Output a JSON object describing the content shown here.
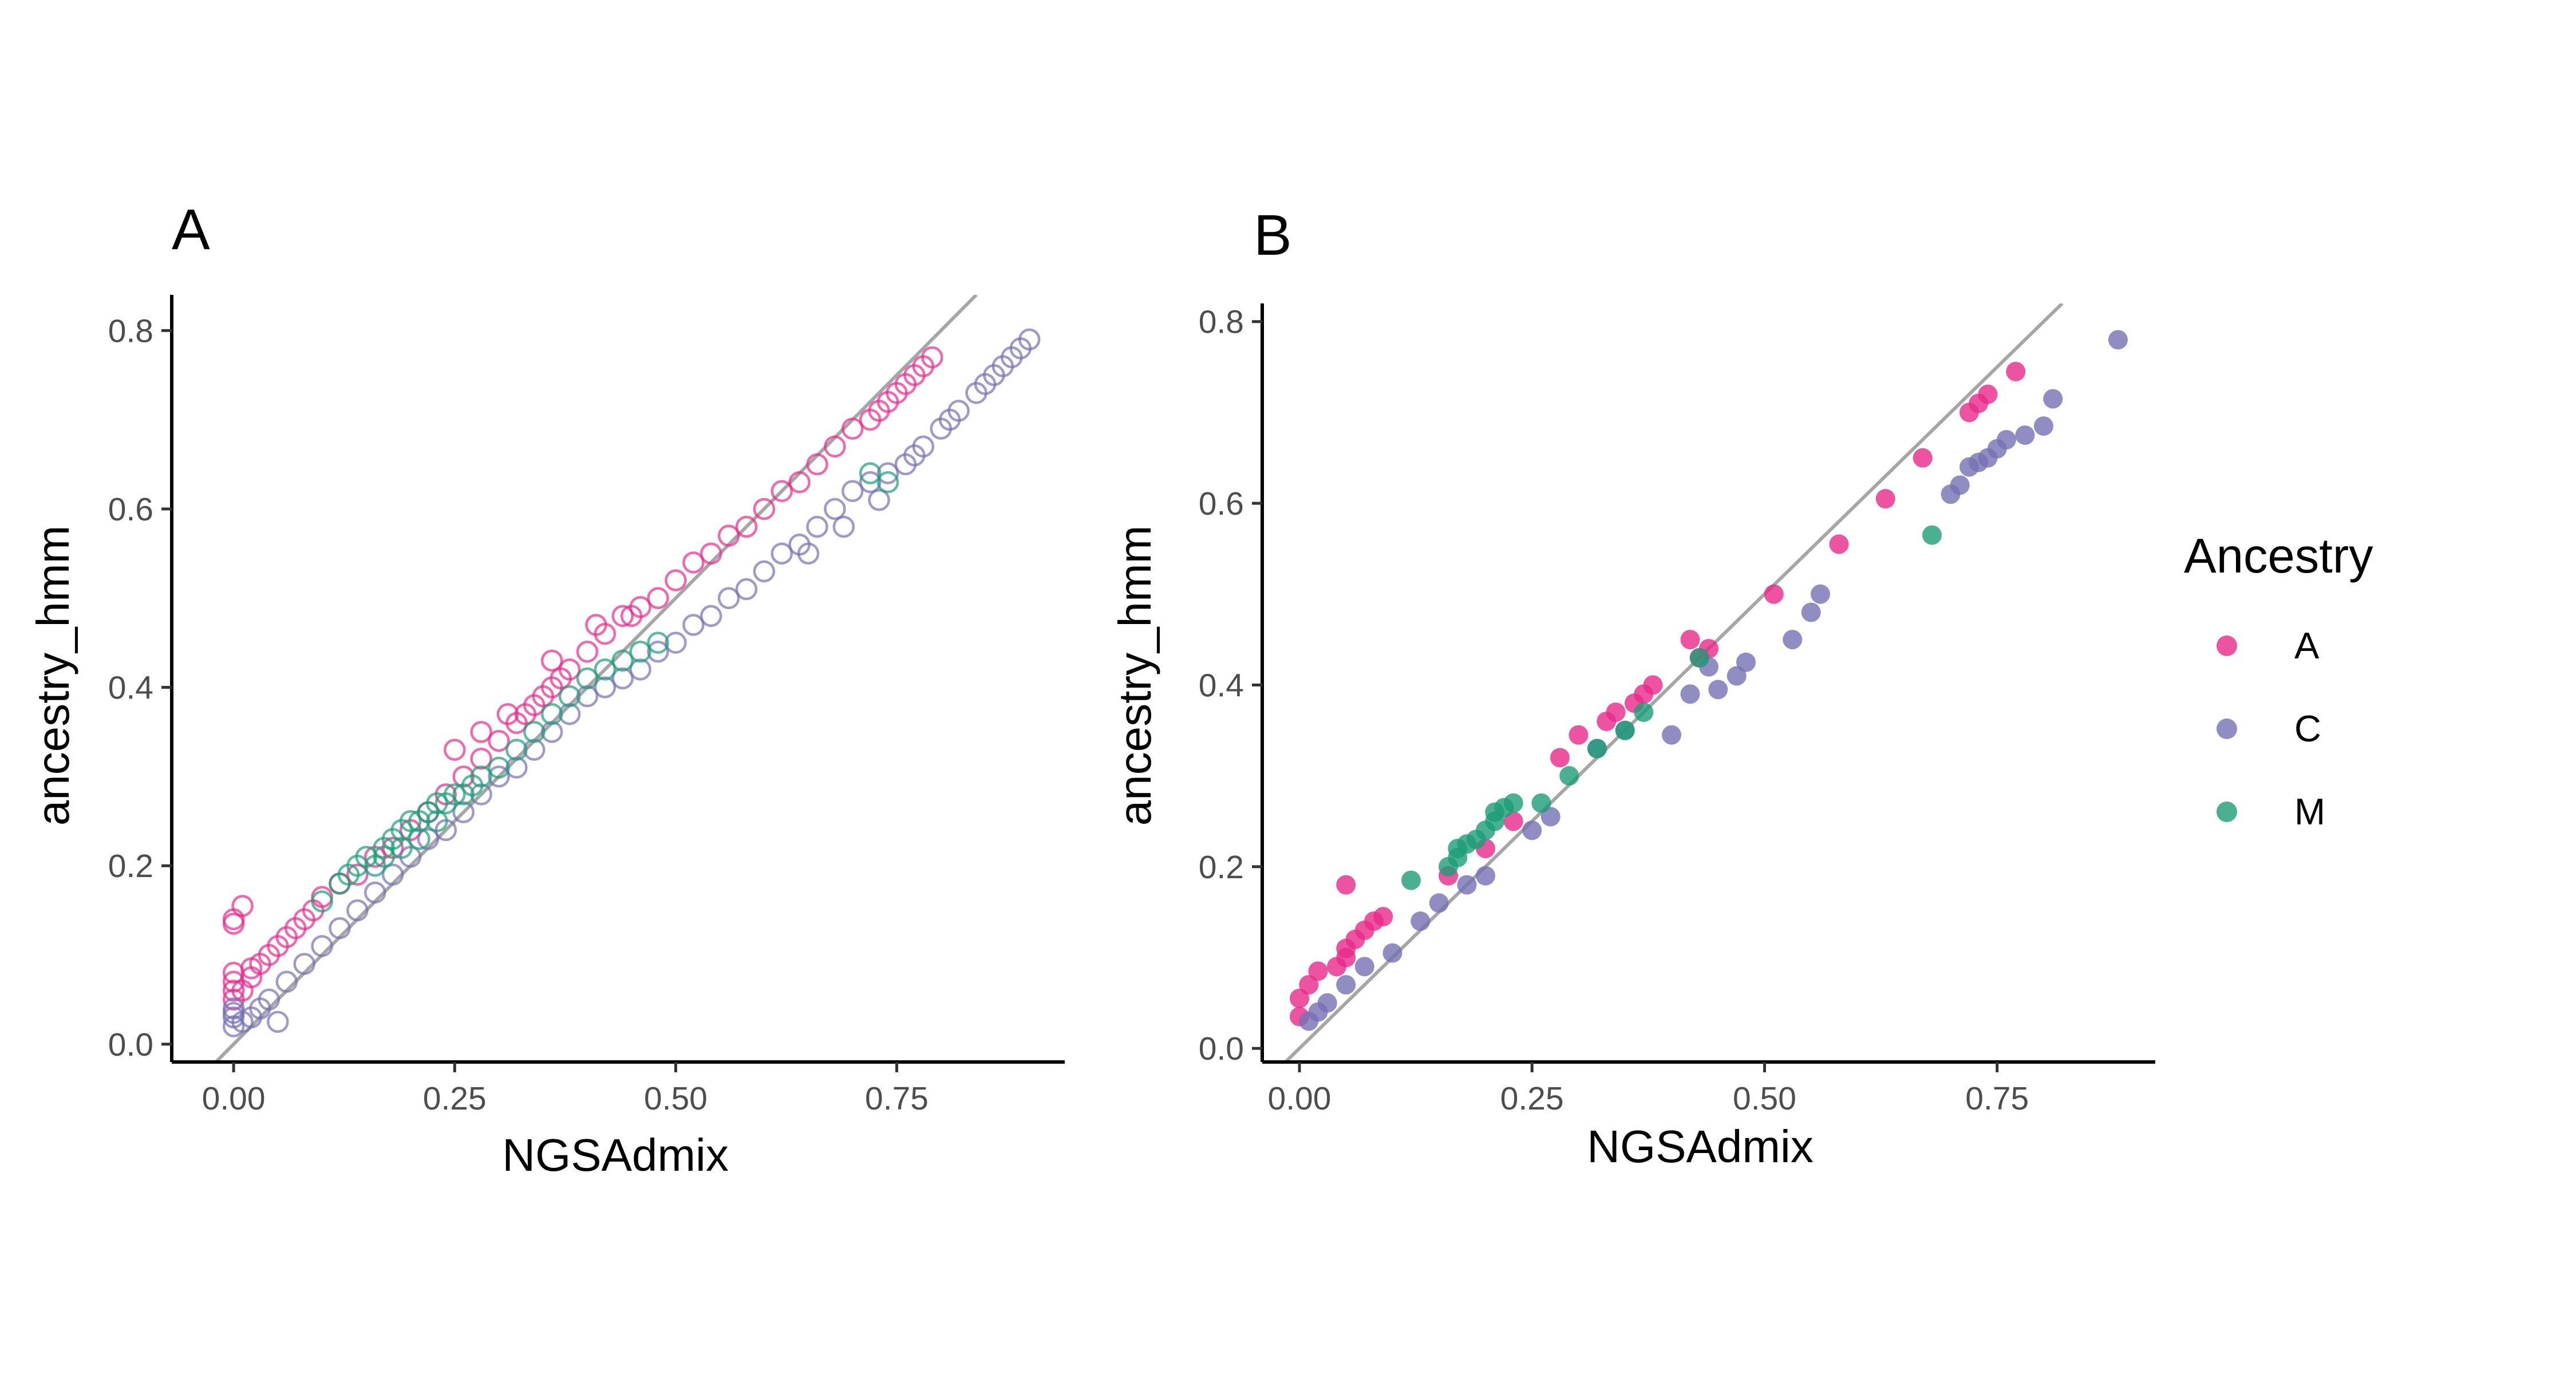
{
  "chart_data": [
    {
      "type": "scatter",
      "panel_label": "A",
      "xlabel": "NGSAdmix",
      "ylabel": "ancestry_hmm",
      "xlim": [
        -0.07,
        0.94
      ],
      "ylim": [
        -0.02,
        0.84
      ],
      "x_ticks": [
        0,
        0.25,
        0.5,
        0.75
      ],
      "x_tick_labels": [
        "0.00",
        "0.25",
        "0.50",
        "0.75"
      ],
      "y_ticks": [
        0,
        0.2,
        0.4,
        0.6,
        0.8
      ],
      "y_tick_labels": [
        "0.0",
        "0.2",
        "0.4",
        "0.6",
        "0.8"
      ],
      "marker": "open-circle",
      "reference_line": {
        "slope": 1,
        "intercept": 0
      },
      "grid": false,
      "series": [
        {
          "name": "A",
          "color": "#e7298a",
          "points": [
            [
              0.0,
              0.05
            ],
            [
              0.0,
              0.06
            ],
            [
              0.0,
              0.07
            ],
            [
              0.0,
              0.08
            ],
            [
              0.0,
              0.14
            ],
            [
              0.0,
              0.135
            ],
            [
              0.01,
              0.155
            ],
            [
              0.01,
              0.06
            ],
            [
              0.02,
              0.075
            ],
            [
              0.02,
              0.085
            ],
            [
              0.03,
              0.09
            ],
            [
              0.04,
              0.1
            ],
            [
              0.05,
              0.11
            ],
            [
              0.06,
              0.12
            ],
            [
              0.07,
              0.13
            ],
            [
              0.08,
              0.14
            ],
            [
              0.09,
              0.15
            ],
            [
              0.1,
              0.165
            ],
            [
              0.12,
              0.18
            ],
            [
              0.14,
              0.19
            ],
            [
              0.16,
              0.21
            ],
            [
              0.18,
              0.22
            ],
            [
              0.2,
              0.24
            ],
            [
              0.22,
              0.26
            ],
            [
              0.24,
              0.28
            ],
            [
              0.26,
              0.3
            ],
            [
              0.28,
              0.32
            ],
            [
              0.3,
              0.34
            ],
            [
              0.32,
              0.36
            ],
            [
              0.33,
              0.37
            ],
            [
              0.34,
              0.38
            ],
            [
              0.35,
              0.39
            ],
            [
              0.36,
              0.4
            ],
            [
              0.37,
              0.41
            ],
            [
              0.38,
              0.42
            ],
            [
              0.4,
              0.44
            ],
            [
              0.42,
              0.46
            ],
            [
              0.44,
              0.48
            ],
            [
              0.46,
              0.49
            ],
            [
              0.48,
              0.5
            ],
            [
              0.5,
              0.52
            ],
            [
              0.52,
              0.54
            ],
            [
              0.54,
              0.55
            ],
            [
              0.56,
              0.57
            ],
            [
              0.58,
              0.58
            ],
            [
              0.6,
              0.6
            ],
            [
              0.62,
              0.62
            ],
            [
              0.64,
              0.63
            ],
            [
              0.66,
              0.65
            ],
            [
              0.68,
              0.67
            ],
            [
              0.7,
              0.69
            ],
            [
              0.72,
              0.7
            ],
            [
              0.73,
              0.71
            ],
            [
              0.74,
              0.72
            ],
            [
              0.75,
              0.73
            ],
            [
              0.76,
              0.74
            ],
            [
              0.77,
              0.75
            ],
            [
              0.78,
              0.76
            ],
            [
              0.79,
              0.77
            ],
            [
              0.25,
              0.33
            ],
            [
              0.28,
              0.35
            ],
            [
              0.31,
              0.37
            ],
            [
              0.36,
              0.43
            ],
            [
              0.41,
              0.47
            ],
            [
              0.45,
              0.48
            ]
          ]
        },
        {
          "name": "C",
          "color": "#7570b3",
          "points": [
            [
              0.0,
              0.02
            ],
            [
              0.0,
              0.03
            ],
            [
              0.0,
              0.035
            ],
            [
              0.0,
              0.04
            ],
            [
              0.01,
              0.025
            ],
            [
              0.02,
              0.03
            ],
            [
              0.03,
              0.04
            ],
            [
              0.04,
              0.05
            ],
            [
              0.05,
              0.025
            ],
            [
              0.06,
              0.07
            ],
            [
              0.08,
              0.09
            ],
            [
              0.1,
              0.11
            ],
            [
              0.12,
              0.13
            ],
            [
              0.14,
              0.15
            ],
            [
              0.16,
              0.17
            ],
            [
              0.18,
              0.19
            ],
            [
              0.2,
              0.21
            ],
            [
              0.22,
              0.23
            ],
            [
              0.24,
              0.24
            ],
            [
              0.26,
              0.26
            ],
            [
              0.28,
              0.28
            ],
            [
              0.3,
              0.3
            ],
            [
              0.32,
              0.31
            ],
            [
              0.34,
              0.33
            ],
            [
              0.36,
              0.35
            ],
            [
              0.38,
              0.37
            ],
            [
              0.4,
              0.39
            ],
            [
              0.42,
              0.4
            ],
            [
              0.44,
              0.41
            ],
            [
              0.46,
              0.42
            ],
            [
              0.48,
              0.44
            ],
            [
              0.5,
              0.45
            ],
            [
              0.52,
              0.47
            ],
            [
              0.54,
              0.48
            ],
            [
              0.56,
              0.5
            ],
            [
              0.58,
              0.51
            ],
            [
              0.6,
              0.53
            ],
            [
              0.62,
              0.55
            ],
            [
              0.64,
              0.56
            ],
            [
              0.66,
              0.58
            ],
            [
              0.68,
              0.6
            ],
            [
              0.7,
              0.62
            ],
            [
              0.72,
              0.63
            ],
            [
              0.74,
              0.64
            ],
            [
              0.76,
              0.65
            ],
            [
              0.78,
              0.67
            ],
            [
              0.8,
              0.69
            ],
            [
              0.82,
              0.71
            ],
            [
              0.84,
              0.73
            ],
            [
              0.86,
              0.75
            ],
            [
              0.88,
              0.77
            ],
            [
              0.89,
              0.78
            ],
            [
              0.9,
              0.79
            ],
            [
              0.87,
              0.76
            ],
            [
              0.85,
              0.74
            ],
            [
              0.81,
              0.7
            ],
            [
              0.77,
              0.66
            ],
            [
              0.73,
              0.61
            ],
            [
              0.69,
              0.58
            ],
            [
              0.65,
              0.55
            ]
          ]
        },
        {
          "name": "M",
          "color": "#1b9e77",
          "points": [
            [
              0.1,
              0.16
            ],
            [
              0.12,
              0.18
            ],
            [
              0.13,
              0.19
            ],
            [
              0.14,
              0.2
            ],
            [
              0.15,
              0.21
            ],
            [
              0.16,
              0.2
            ],
            [
              0.17,
              0.22
            ],
            [
              0.18,
              0.23
            ],
            [
              0.19,
              0.24
            ],
            [
              0.2,
              0.25
            ],
            [
              0.21,
              0.25
            ],
            [
              0.22,
              0.26
            ],
            [
              0.23,
              0.27
            ],
            [
              0.24,
              0.27
            ],
            [
              0.25,
              0.28
            ],
            [
              0.26,
              0.28
            ],
            [
              0.27,
              0.29
            ],
            [
              0.28,
              0.3
            ],
            [
              0.3,
              0.31
            ],
            [
              0.32,
              0.33
            ],
            [
              0.34,
              0.35
            ],
            [
              0.36,
              0.37
            ],
            [
              0.38,
              0.39
            ],
            [
              0.4,
              0.41
            ],
            [
              0.42,
              0.42
            ],
            [
              0.44,
              0.43
            ],
            [
              0.46,
              0.44
            ],
            [
              0.48,
              0.45
            ],
            [
              0.72,
              0.64
            ],
            [
              0.74,
              0.63
            ],
            [
              0.23,
              0.25
            ],
            [
              0.21,
              0.23
            ],
            [
              0.19,
              0.22
            ],
            [
              0.17,
              0.21
            ]
          ]
        }
      ]
    },
    {
      "type": "scatter",
      "panel_label": "B",
      "xlabel": "NGSAdmix",
      "ylabel": "ancestry_hmm",
      "xlim": [
        -0.04,
        0.92
      ],
      "ylim": [
        -0.015,
        0.82
      ],
      "x_ticks": [
        0,
        0.25,
        0.5,
        0.75
      ],
      "x_tick_labels": [
        "0.00",
        "0.25",
        "0.50",
        "0.75"
      ],
      "y_ticks": [
        0,
        0.2,
        0.4,
        0.6,
        0.8
      ],
      "y_tick_labels": [
        "0.0",
        "0.2",
        "0.4",
        "0.6",
        "0.8"
      ],
      "marker": "filled-circle",
      "reference_line": {
        "slope": 1,
        "intercept": 0
      },
      "grid": false,
      "series": [
        {
          "name": "A",
          "color": "#e7298a",
          "points": [
            [
              0.0,
              0.035
            ],
            [
              0.0,
              0.055
            ],
            [
              0.01,
              0.07
            ],
            [
              0.02,
              0.085
            ],
            [
              0.04,
              0.09
            ],
            [
              0.05,
              0.1
            ],
            [
              0.05,
              0.11
            ],
            [
              0.05,
              0.18
            ],
            [
              0.06,
              0.12
            ],
            [
              0.07,
              0.13
            ],
            [
              0.08,
              0.14
            ],
            [
              0.09,
              0.145
            ],
            [
              0.16,
              0.19
            ],
            [
              0.2,
              0.22
            ],
            [
              0.23,
              0.25
            ],
            [
              0.28,
              0.32
            ],
            [
              0.3,
              0.345
            ],
            [
              0.33,
              0.36
            ],
            [
              0.34,
              0.37
            ],
            [
              0.36,
              0.38
            ],
            [
              0.37,
              0.39
            ],
            [
              0.38,
              0.4
            ],
            [
              0.42,
              0.45
            ],
            [
              0.43,
              0.43
            ],
            [
              0.44,
              0.44
            ],
            [
              0.51,
              0.5
            ],
            [
              0.58,
              0.555
            ],
            [
              0.63,
              0.605
            ],
            [
              0.67,
              0.65
            ],
            [
              0.72,
              0.7
            ],
            [
              0.74,
              0.72
            ],
            [
              0.77,
              0.745
            ],
            [
              0.73,
              0.71
            ]
          ]
        },
        {
          "name": "C",
          "color": "#7570b3",
          "points": [
            [
              0.01,
              0.03
            ],
            [
              0.02,
              0.04
            ],
            [
              0.03,
              0.05
            ],
            [
              0.05,
              0.07
            ],
            [
              0.07,
              0.09
            ],
            [
              0.1,
              0.105
            ],
            [
              0.13,
              0.14
            ],
            [
              0.15,
              0.16
            ],
            [
              0.18,
              0.18
            ],
            [
              0.2,
              0.19
            ],
            [
              0.25,
              0.24
            ],
            [
              0.27,
              0.255
            ],
            [
              0.35,
              0.35
            ],
            [
              0.4,
              0.345
            ],
            [
              0.42,
              0.39
            ],
            [
              0.45,
              0.395
            ],
            [
              0.47,
              0.41
            ],
            [
              0.48,
              0.425
            ],
            [
              0.53,
              0.45
            ],
            [
              0.55,
              0.48
            ],
            [
              0.56,
              0.5
            ],
            [
              0.7,
              0.61
            ],
            [
              0.71,
              0.62
            ],
            [
              0.72,
              0.64
            ],
            [
              0.73,
              0.645
            ],
            [
              0.74,
              0.65
            ],
            [
              0.75,
              0.66
            ],
            [
              0.76,
              0.67
            ],
            [
              0.78,
              0.675
            ],
            [
              0.8,
              0.685
            ],
            [
              0.81,
              0.715
            ],
            [
              0.88,
              0.78
            ],
            [
              0.44,
              0.42
            ],
            [
              0.32,
              0.33
            ]
          ]
        },
        {
          "name": "M",
          "color": "#1b9e77",
          "points": [
            [
              0.12,
              0.185
            ],
            [
              0.16,
              0.2
            ],
            [
              0.17,
              0.21
            ],
            [
              0.17,
              0.22
            ],
            [
              0.18,
              0.225
            ],
            [
              0.19,
              0.23
            ],
            [
              0.2,
              0.24
            ],
            [
              0.21,
              0.25
            ],
            [
              0.21,
              0.26
            ],
            [
              0.22,
              0.265
            ],
            [
              0.23,
              0.27
            ],
            [
              0.26,
              0.27
            ],
            [
              0.29,
              0.3
            ],
            [
              0.32,
              0.33
            ],
            [
              0.35,
              0.35
            ],
            [
              0.37,
              0.37
            ],
            [
              0.43,
              0.43
            ],
            [
              0.68,
              0.565
            ]
          ]
        }
      ]
    }
  ],
  "legend": {
    "title": "Ancestry",
    "placement": "right",
    "items": [
      {
        "label": "A",
        "color": "#e7298a"
      },
      {
        "label": "C",
        "color": "#7570b3"
      },
      {
        "label": "M",
        "color": "#1b9e77"
      }
    ]
  }
}
